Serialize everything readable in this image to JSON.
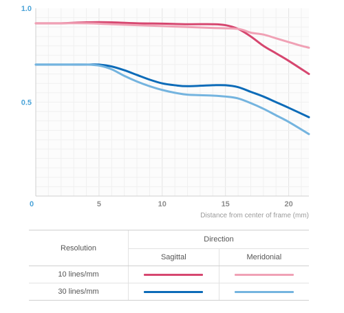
{
  "chart_data": {
    "type": "line",
    "xlabel": "Distance from center of frame (mm)",
    "ylabel": "",
    "xlim": [
      0,
      21.6
    ],
    "ylim": [
      0,
      1.0
    ],
    "x_ticks": [
      0,
      5,
      10,
      15,
      20
    ],
    "x_tick_labels": [
      "0",
      "5",
      "10",
      "15",
      "20"
    ],
    "y_ticks": [
      0.5,
      1.0
    ],
    "y_tick_labels": [
      "0.5",
      "1.0"
    ],
    "grid": true,
    "series": [
      {
        "color": "#d6466f",
        "x": [
          0,
          2,
          4,
          6,
          8,
          10,
          12,
          14,
          15,
          16,
          17,
          18,
          19,
          20,
          21.6
        ],
        "y": [
          0.92,
          0.92,
          0.925,
          0.925,
          0.92,
          0.918,
          0.915,
          0.915,
          0.91,
          0.89,
          0.85,
          0.8,
          0.76,
          0.72,
          0.65
        ]
      },
      {
        "color": "#f0a1b5",
        "x": [
          0,
          2,
          4,
          6,
          8,
          10,
          12,
          14,
          16,
          17,
          18,
          19,
          20,
          21,
          21.6
        ],
        "y": [
          0.92,
          0.92,
          0.92,
          0.915,
          0.91,
          0.905,
          0.9,
          0.895,
          0.89,
          0.87,
          0.86,
          0.84,
          0.82,
          0.8,
          0.79
        ]
      },
      {
        "color": "#0c6bb8",
        "x": [
          0,
          2,
          4,
          5,
          6,
          7,
          8,
          9,
          10,
          11,
          12,
          14,
          15,
          16,
          17,
          18,
          19,
          20,
          21.6
        ],
        "y": [
          0.7,
          0.7,
          0.7,
          0.7,
          0.69,
          0.67,
          0.645,
          0.62,
          0.6,
          0.59,
          0.585,
          0.59,
          0.59,
          0.58,
          0.555,
          0.53,
          0.5,
          0.47,
          0.42
        ]
      },
      {
        "color": "#74b4df",
        "x": [
          0,
          2,
          4,
          5,
          6,
          7,
          8,
          9,
          10,
          11,
          12,
          14,
          15,
          16,
          17,
          18,
          19,
          20,
          21.6
        ],
        "y": [
          0.7,
          0.7,
          0.7,
          0.695,
          0.675,
          0.64,
          0.61,
          0.585,
          0.565,
          0.55,
          0.54,
          0.535,
          0.53,
          0.52,
          0.495,
          0.465,
          0.43,
          0.395,
          0.33
        ]
      }
    ]
  },
  "legend_table": {
    "resolution_header": "Resolution",
    "direction_header": "Direction",
    "columns": [
      "Sagittal",
      "Meridonial"
    ],
    "rows": [
      {
        "label": "10 lines/mm",
        "colors": [
          "#d6466f",
          "#f0a1b5"
        ]
      },
      {
        "label": "30 lines/mm",
        "colors": [
          "#0c6bb8",
          "#74b4df"
        ]
      }
    ]
  }
}
